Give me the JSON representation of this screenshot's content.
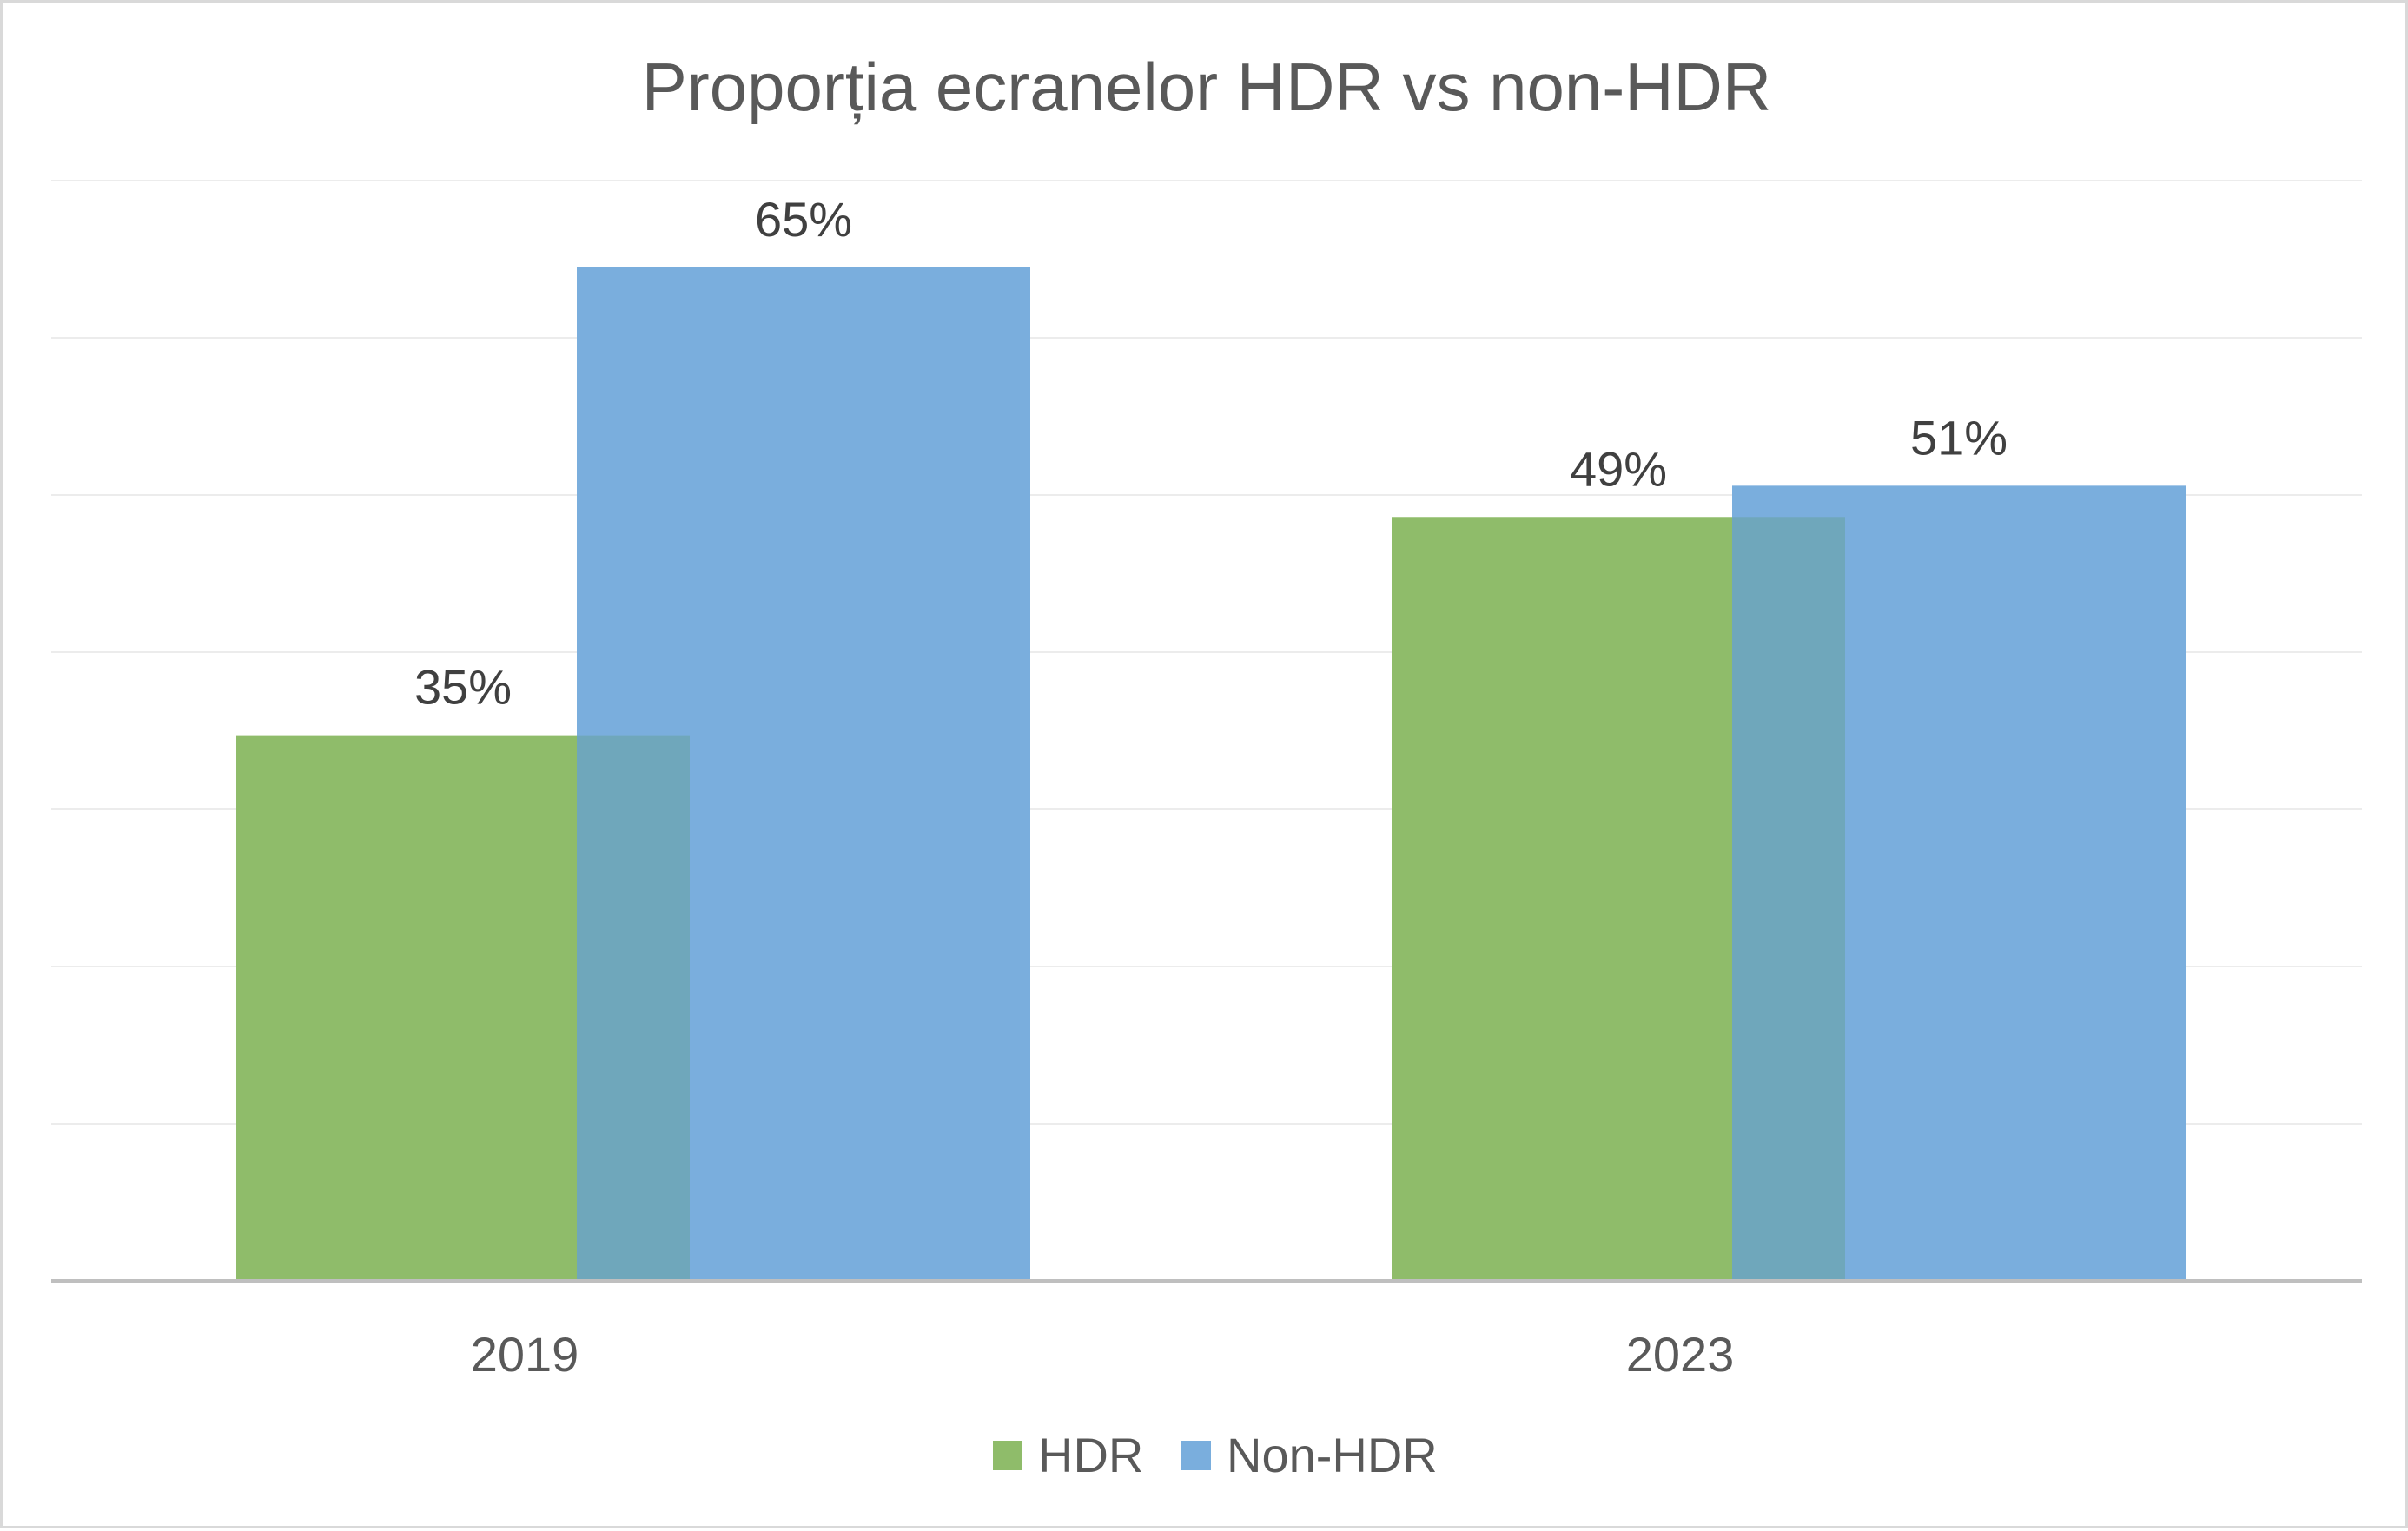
{
  "chart_data": {
    "type": "bar",
    "title": "Proporția ecranelor HDR vs non-HDR",
    "categories": [
      "2019",
      "2023"
    ],
    "series": [
      {
        "name": "HDR",
        "values": [
          35,
          49
        ],
        "labels": [
          "35%",
          "49%"
        ],
        "color": "#8fbc6a"
      },
      {
        "name": "Non-HDR",
        "values": [
          65,
          51
        ],
        "labels": [
          "65%",
          "51%"
        ],
        "color": "#7aaedd"
      }
    ],
    "overlap_color": "#6fa7bb",
    "ylim": [
      0,
      70
    ],
    "grid": true,
    "legend_position": "bottom",
    "xlabel": "",
    "ylabel": ""
  }
}
